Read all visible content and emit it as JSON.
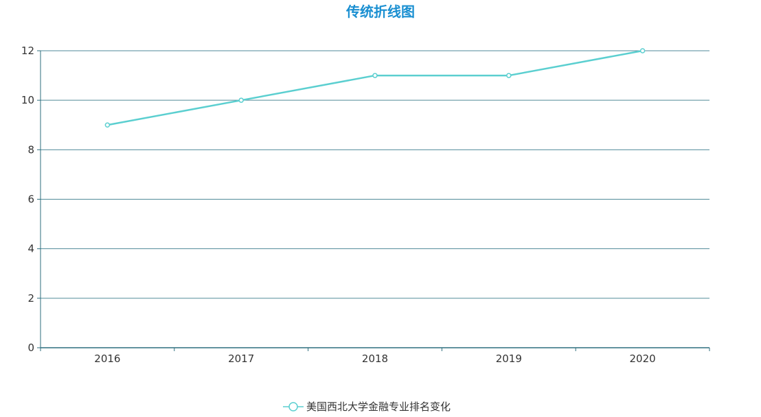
{
  "chart_data": {
    "type": "line",
    "title": "传统折线图",
    "categories": [
      "2016",
      "2017",
      "2018",
      "2019",
      "2020"
    ],
    "series": [
      {
        "name": "美国西北大学金融专业排名变化",
        "values": [
          9,
          10,
          11,
          11,
          12
        ]
      }
    ],
    "xlabel": "",
    "ylabel": "",
    "ylim": [
      0,
      12
    ],
    "yticks": [
      0,
      2,
      4,
      6,
      8,
      10,
      12
    ],
    "grid": true,
    "legend_position": "bottom-center",
    "colors": {
      "title": "#1a8fd1",
      "series": "#5bcfd0",
      "axis": "#2d6e7e",
      "grid": "#4f8a98",
      "text": "#333333"
    }
  }
}
